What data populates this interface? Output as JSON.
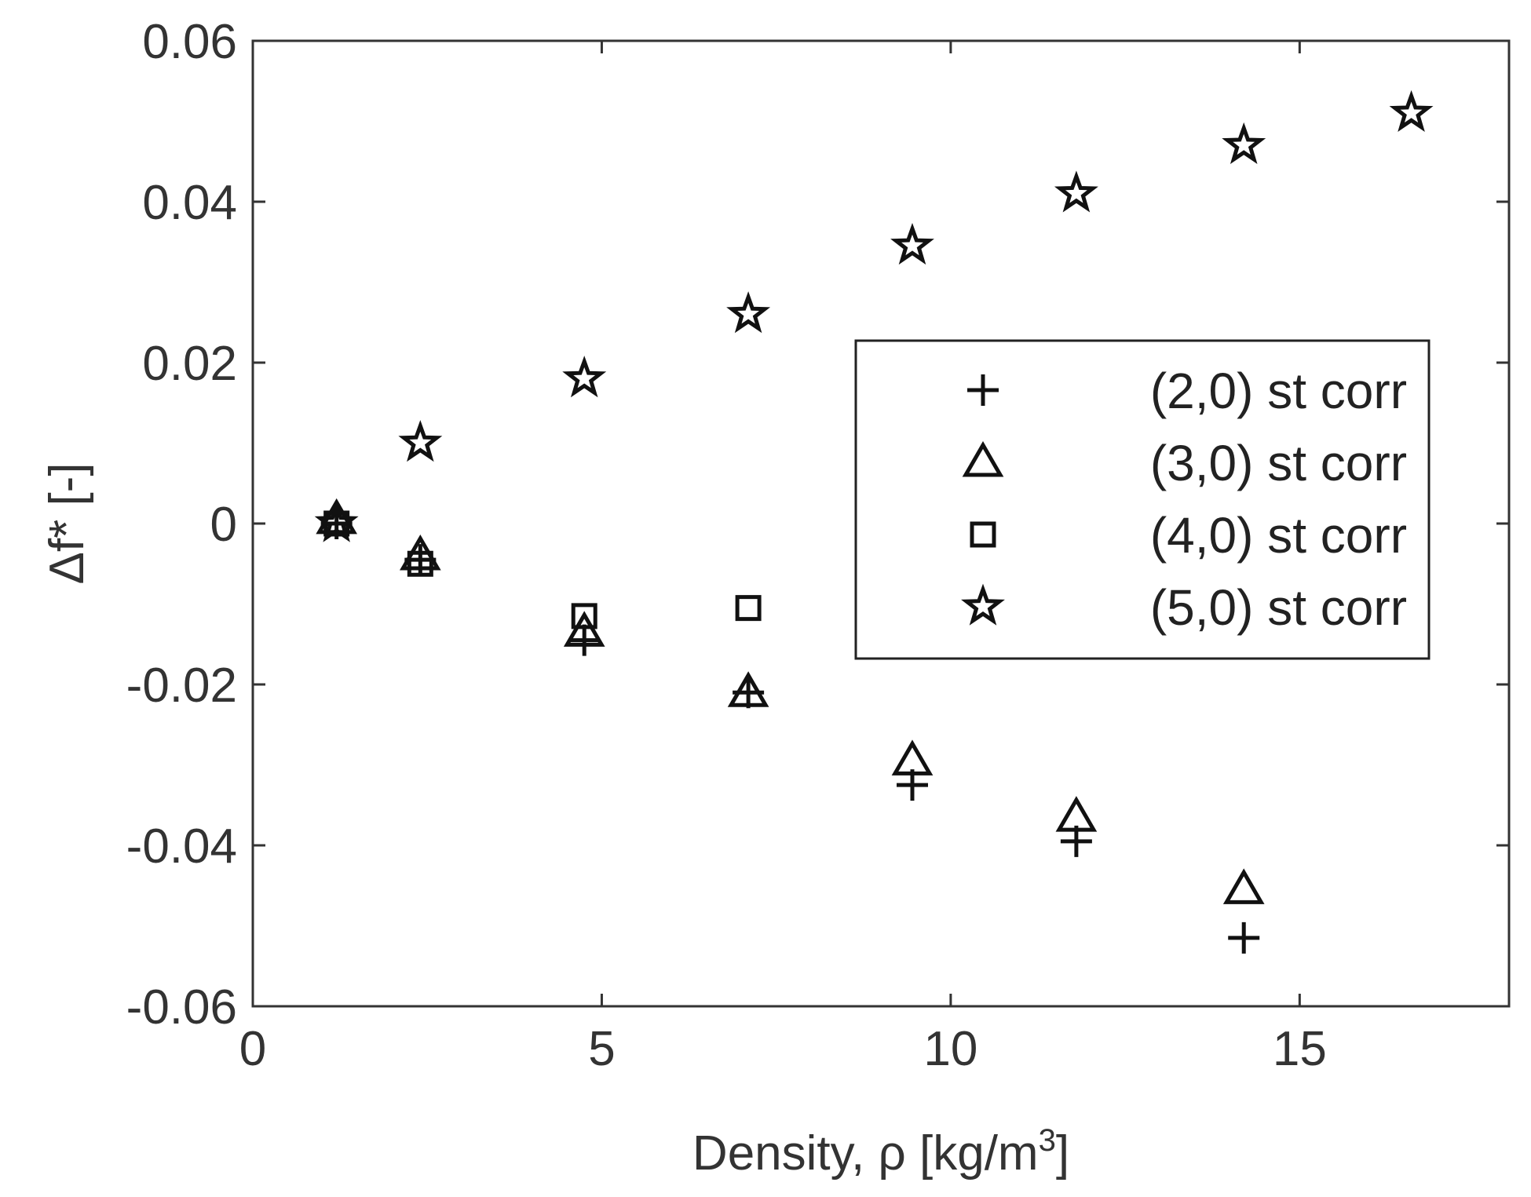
{
  "chart_data": {
    "type": "scatter",
    "xlabel": "Density, ρ [kg/m",
    "xlabel_sup": "3",
    "xlabel_end": "]",
    "ylabel": "Δf* [-]",
    "xlim": [
      0,
      18
    ],
    "ylim": [
      -0.06,
      0.06
    ],
    "xticks": [
      0,
      5,
      10,
      15
    ],
    "yticks": [
      -0.06,
      -0.04,
      -0.02,
      0,
      0.02,
      0.04,
      0.06
    ],
    "xtick_labels": [
      "0",
      "5",
      "10",
      "15"
    ],
    "ytick_labels": [
      "-0.06",
      "-0.04",
      "-0.02",
      "0",
      "0.02",
      "0.04",
      "0.06"
    ],
    "grid": false,
    "legend_position": "center-right",
    "series": [
      {
        "name": "(2,0) st corr",
        "marker": "plus",
        "x": [
          1.2,
          2.4,
          4.75,
          7.1,
          9.45,
          11.8,
          14.2
        ],
        "y": [
          0.0,
          -0.0045,
          -0.0145,
          -0.021,
          -0.0325,
          -0.0395,
          -0.0515
        ]
      },
      {
        "name": "(3,0) st corr",
        "marker": "triangle",
        "x": [
          1.2,
          2.4,
          4.75,
          7.1,
          9.45,
          11.8,
          14.2
        ],
        "y": [
          0.0005,
          -0.004,
          -0.0135,
          -0.021,
          -0.0295,
          -0.0365,
          -0.0455
        ]
      },
      {
        "name": "(4,0) st corr",
        "marker": "square",
        "x": [
          1.2,
          2.4,
          4.75,
          7.1
        ],
        "y": [
          0.0,
          -0.005,
          -0.0115,
          -0.0105
        ]
      },
      {
        "name": "(5,0) st corr",
        "marker": "star",
        "x": [
          1.2,
          2.4,
          4.75,
          7.1,
          9.45,
          11.8,
          14.2,
          16.6
        ],
        "y": [
          0.0,
          0.01,
          0.018,
          0.026,
          0.0345,
          0.041,
          0.047,
          0.051
        ]
      }
    ]
  }
}
